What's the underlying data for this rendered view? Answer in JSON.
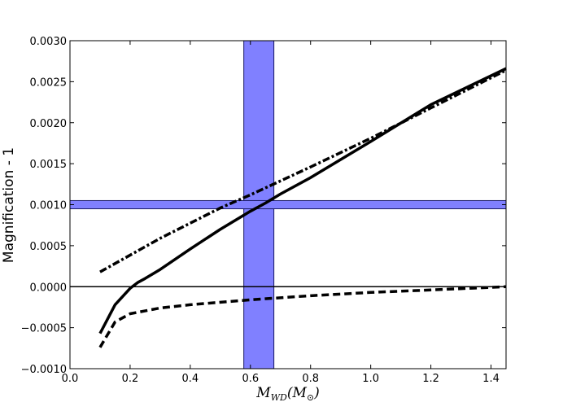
{
  "chart_data": {
    "type": "line",
    "title": "",
    "xlabel": {
      "main": "M",
      "sub": "WD",
      "paren_open": "(M",
      "paren_sub": "⊙",
      "paren_close": ")"
    },
    "ylabel": "Magnification - 1",
    "xlim": [
      0.0,
      1.45
    ],
    "ylim": [
      -0.001,
      0.003
    ],
    "x_ticks": [
      0.0,
      0.2,
      0.4,
      0.6,
      0.8,
      1.0,
      1.2,
      1.4
    ],
    "x_tick_labels": [
      "0.0",
      "0.2",
      "0.4",
      "0.6",
      "0.8",
      "1.0",
      "1.2",
      "1.4"
    ],
    "y_ticks": [
      -0.001,
      -0.0005,
      0.0,
      0.0005,
      0.001,
      0.0015,
      0.002,
      0.0025,
      0.003
    ],
    "y_tick_labels": [
      "−0.0010",
      "−0.0005",
      "0.0000",
      "0.0005",
      "0.0010",
      "0.0015",
      "0.0020",
      "0.0025",
      "0.0030"
    ],
    "grid": false,
    "legend": "none",
    "bands": {
      "vertical": {
        "x_min": 0.578,
        "x_max": 0.678,
        "color": "#8080ff"
      },
      "horizontal": {
        "y_min": 0.00095,
        "y_max": 0.00105,
        "color": "#8080ff"
      }
    },
    "reference_line": {
      "y": 0.0,
      "color": "#000000"
    },
    "series": [
      {
        "style": "solid",
        "x": [
          0.1,
          0.15,
          0.2,
          0.225,
          0.25,
          0.3,
          0.4,
          0.5,
          0.6,
          0.65,
          0.7,
          0.8,
          1.0,
          1.2,
          1.45
        ],
        "y": [
          -0.00057,
          -0.00022,
          -2e-05,
          5e-05,
          0.0001,
          0.00021,
          0.00046,
          0.0007,
          0.00092,
          0.00102,
          0.00113,
          0.00133,
          0.00177,
          0.00222,
          0.00266
        ]
      },
      {
        "style": "dashed",
        "x": [
          0.1,
          0.15,
          0.2,
          0.3,
          0.4,
          0.6,
          0.8,
          1.0,
          1.2,
          1.45
        ],
        "y": [
          -0.00074,
          -0.00043,
          -0.00033,
          -0.00026,
          -0.00022,
          -0.00016,
          -0.00011,
          -7e-05,
          -4e-05,
          0.0
        ]
      },
      {
        "style": "dashdot",
        "x": [
          0.1,
          0.3,
          0.5,
          0.6,
          0.8,
          1.0,
          1.2,
          1.45
        ],
        "y": [
          0.00018,
          0.00059,
          0.00096,
          0.00112,
          0.00146,
          0.00181,
          0.00218,
          0.00264
        ]
      }
    ]
  }
}
